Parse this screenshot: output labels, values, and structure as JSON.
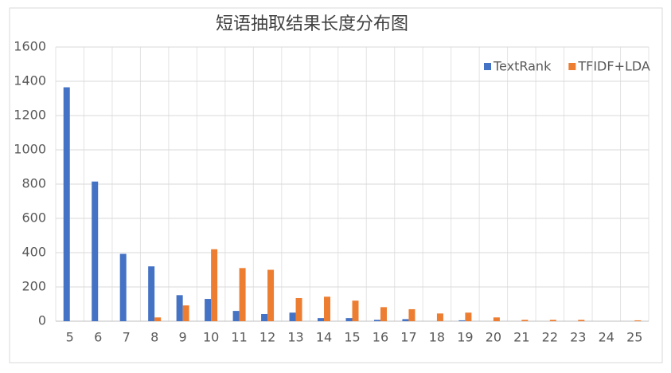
{
  "chart_data": {
    "type": "bar",
    "title": "短语抽取结果长度分布图",
    "categories": [
      "5",
      "6",
      "7",
      "8",
      "9",
      "10",
      "11",
      "12",
      "13",
      "14",
      "15",
      "16",
      "17",
      "18",
      "19",
      "20",
      "21",
      "22",
      "23",
      "24",
      "25"
    ],
    "series": [
      {
        "name": "TextRank",
        "color": "#4472c4",
        "values": [
          1365,
          815,
          393,
          320,
          152,
          130,
          60,
          42,
          50,
          18,
          18,
          8,
          12,
          0,
          5,
          0,
          0,
          0,
          0,
          0,
          0
        ]
      },
      {
        "name": "TFIDF+LDA",
        "color": "#ed7d31",
        "values": [
          0,
          0,
          0,
          22,
          92,
          420,
          310,
          300,
          135,
          143,
          120,
          82,
          70,
          45,
          50,
          22,
          8,
          8,
          8,
          0,
          5
        ]
      }
    ],
    "ylim": [
      0,
      1600
    ],
    "yticks": [
      0,
      200,
      400,
      600,
      800,
      1000,
      1200,
      1400,
      1600
    ],
    "grid": true,
    "legend": "top-right"
  }
}
